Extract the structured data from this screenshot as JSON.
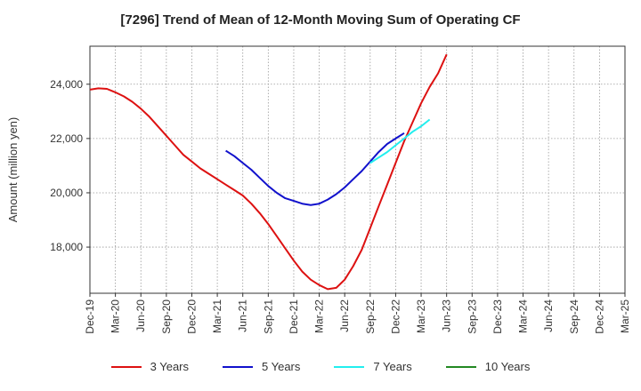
{
  "chart_data": {
    "type": "line",
    "title": "[7296]  Trend of Mean of 12-Month Moving Sum of Operating CF",
    "xlabel": "",
    "ylabel": "Amount (million yen)",
    "ylim": [
      16300,
      25400
    ],
    "yticks": [
      18000,
      20000,
      22000,
      24000
    ],
    "ytick_labels": [
      "18,000",
      "20,000",
      "22,000",
      "24,000"
    ],
    "x_start": "Dec-19",
    "x_end": "Mar-25",
    "xtick_labels": [
      "Dec-19",
      "Mar-20",
      "Jun-20",
      "Sep-20",
      "Dec-20",
      "Mar-21",
      "Jun-21",
      "Sep-21",
      "Dec-21",
      "Mar-22",
      "Jun-22",
      "Sep-22",
      "Dec-22",
      "Mar-23",
      "Jun-23",
      "Sep-23",
      "Dec-23",
      "Mar-24",
      "Jun-24",
      "Sep-24",
      "Dec-24",
      "Mar-25"
    ],
    "grid": true,
    "series": [
      {
        "name": "3 Years",
        "color": "#dd1111",
        "start_index": 0,
        "values": [
          23800,
          23850,
          23830,
          23700,
          23550,
          23350,
          23100,
          22800,
          22450,
          22100,
          21750,
          21400,
          21150,
          20900,
          20700,
          20500,
          20300,
          20100,
          19900,
          19600,
          19250,
          18850,
          18400,
          17950,
          17500,
          17100,
          16800,
          16600,
          16450,
          16500,
          16800,
          17300,
          17900,
          18700,
          19500,
          20300,
          21100,
          21900,
          22600,
          23300,
          23900,
          24400,
          25100
        ]
      },
      {
        "name": "5 Years",
        "color": "#1111cc",
        "start_index": 16,
        "values": [
          21550,
          21350,
          21100,
          20850,
          20550,
          20250,
          20000,
          19800,
          19700,
          19600,
          19550,
          19600,
          19750,
          19950,
          20200,
          20500,
          20800,
          21150,
          21500,
          21800,
          22000,
          22200
        ]
      },
      {
        "name": "7 Years",
        "color": "#22eeee",
        "start_index": 33,
        "values": [
          21100,
          21300,
          21500,
          21750,
          22000,
          22250,
          22450,
          22700
        ]
      },
      {
        "name": "10 Years",
        "color": "#228822",
        "start_index": 0,
        "values": []
      }
    ]
  }
}
